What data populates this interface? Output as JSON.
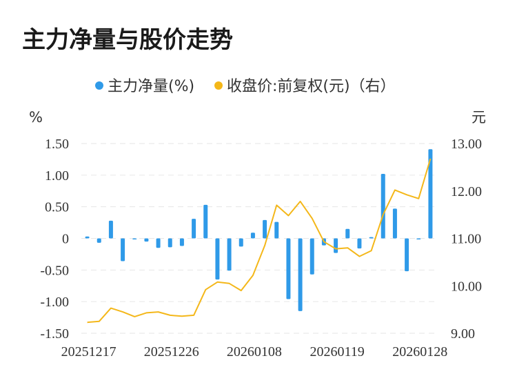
{
  "title": "主力净量与股价走势",
  "colors": {
    "bar": "#2f9ae8",
    "line": "#f4b719",
    "grid": "#e6e6e6",
    "text": "#333333"
  },
  "chart_data": {
    "type": "bar+line",
    "legend": {
      "placement": "top-center",
      "entries": [
        "主力净量(%)",
        "收盘价:前复权(元)（右）"
      ]
    },
    "left_axis": {
      "unit": "%",
      "ylim": [
        -1.5,
        1.5
      ],
      "ticks": [
        1.5,
        1.0,
        0.5,
        0,
        -0.5,
        -1.0,
        -1.5
      ],
      "tick_labels": [
        "1.50",
        "1.00",
        "0.50",
        "0",
        "-0.50",
        "-1.00",
        "-1.50"
      ]
    },
    "right_axis": {
      "unit": "元",
      "ylim": [
        9.0,
        13.0
      ],
      "ticks": [
        13.0,
        12.0,
        11.0,
        10.0,
        9.0
      ],
      "tick_labels": [
        "13.00",
        "12.00",
        "11.00",
        "10.00",
        "9.00"
      ]
    },
    "x_tick_labels": [
      {
        "index": 0,
        "label": "20251217"
      },
      {
        "index": 7,
        "label": "20251226"
      },
      {
        "index": 14,
        "label": "20260108"
      },
      {
        "index": 21,
        "label": "20260119"
      },
      {
        "index": 28,
        "label": "20260128"
      }
    ],
    "grid": true,
    "series": [
      {
        "name": "主力净量(%)",
        "type": "bar",
        "axis": "left",
        "values": [
          0.03,
          -0.07,
          0.28,
          -0.36,
          -0.01,
          -0.05,
          -0.15,
          -0.14,
          -0.12,
          0.31,
          0.53,
          -0.65,
          -0.51,
          -0.13,
          0.09,
          0.29,
          0.26,
          -0.96,
          -1.15,
          -0.57,
          -0.11,
          -0.23,
          0.15,
          -0.16,
          0.02,
          1.02,
          0.47,
          -0.52,
          -0.01,
          1.41
        ]
      },
      {
        "name": "收盘价:前复权(元)（右）",
        "type": "line",
        "axis": "right",
        "values": [
          9.23,
          9.25,
          9.53,
          9.45,
          9.35,
          9.43,
          9.45,
          9.38,
          9.36,
          9.38,
          9.92,
          10.08,
          10.05,
          9.9,
          10.22,
          10.85,
          11.7,
          11.48,
          11.78,
          11.42,
          10.93,
          10.78,
          10.8,
          10.62,
          10.74,
          11.5,
          12.02,
          11.92,
          11.84,
          12.68
        ]
      }
    ]
  }
}
